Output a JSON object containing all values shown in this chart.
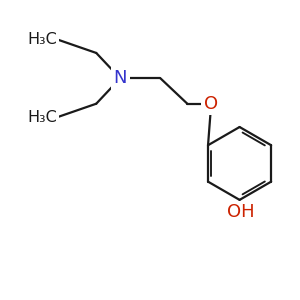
{
  "bg_color": "#ffffff",
  "bond_color": "#1a1a1a",
  "N_color": "#3333cc",
  "O_color": "#cc2200",
  "line_width": 1.6,
  "font_size": 11.5,
  "N_label": "N",
  "O_label": "O",
  "OH_label": "OH",
  "H3C_upper": "H₃C",
  "H3C_lower": "H₃C"
}
